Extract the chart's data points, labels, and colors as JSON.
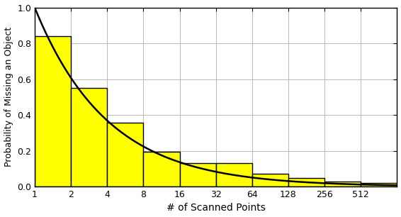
{
  "x_labels": [
    "1",
    "2",
    "4",
    "8",
    "16",
    "32",
    "64",
    "128",
    "256",
    "512"
  ],
  "x_values": [
    1,
    2,
    4,
    8,
    16,
    32,
    64,
    128,
    256,
    512
  ],
  "bar_heights": [
    0.84,
    0.55,
    0.355,
    0.193,
    0.132,
    0.132,
    0.072,
    0.048,
    0.028,
    0.018
  ],
  "bar_color": "#FFFF00",
  "bar_edge_color": "#000000",
  "bar_edge_width": 1.0,
  "curve_color": "#000000",
  "curve_linewidth": 1.8,
  "xlabel": "# of Scanned Points",
  "ylabel": "Probability of Missing an Object",
  "ylim": [
    0,
    1.0
  ],
  "yticks": [
    0.0,
    0.2,
    0.4,
    0.6,
    0.8,
    1.0
  ],
  "grid_color": "#b0b0b0",
  "grid_linewidth": 0.6,
  "background_color": "#ffffff",
  "curve_alpha": 0.72,
  "xlim_left": 1,
  "xlim_right": 1024
}
